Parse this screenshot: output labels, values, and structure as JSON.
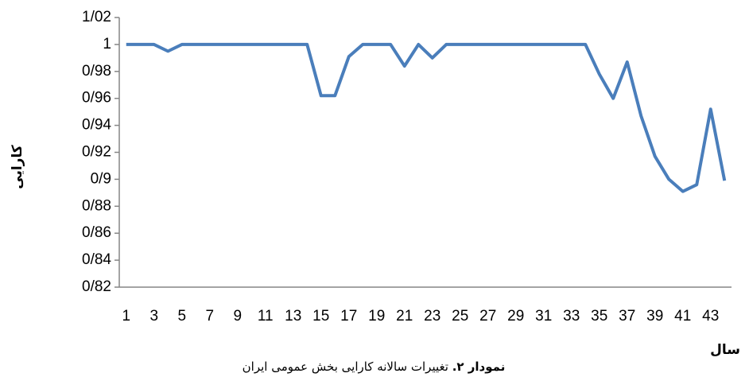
{
  "chart_data": {
    "type": "line",
    "caption_label": "نمودار ۲.",
    "caption_text": "تغییرات سالانه کارایی بخش عمومی ایران",
    "x_label": "سال",
    "y_label": "کارایی",
    "categories": [
      "1",
      null,
      "3",
      null,
      "5",
      null,
      "7",
      null,
      "9",
      null,
      "11",
      null,
      "13",
      null,
      "15",
      null,
      "17",
      null,
      "19",
      null,
      "21",
      null,
      "23",
      null,
      "25",
      null,
      "27",
      null,
      "29",
      null,
      "31",
      null,
      "33",
      null,
      "35",
      null,
      "37",
      null,
      "39",
      null,
      "41",
      null,
      "43",
      null
    ],
    "series": [
      {
        "name": null,
        "color": "#4a7ebb",
        "values": [
          1,
          1,
          1,
          0.995,
          1,
          1,
          1,
          1,
          1,
          1,
          1,
          1,
          1,
          1,
          0.962,
          0.962,
          0.991,
          1,
          1,
          1,
          0.984,
          1,
          0.99,
          1,
          1,
          1,
          1,
          1,
          1,
          1,
          1,
          1,
          1,
          1,
          0.978,
          0.96,
          0.987,
          0.947,
          0.917,
          0.9,
          0.891,
          0.896,
          0.952,
          0.899
        ]
      }
    ],
    "ylim": [
      0.82,
      1.02
    ],
    "yticks": [
      {
        "value": 0.82,
        "label": "0/82"
      },
      {
        "value": 0.84,
        "label": "0/84"
      },
      {
        "value": 0.86,
        "label": "0/86"
      },
      {
        "value": 0.88,
        "label": "0/88"
      },
      {
        "value": 0.9,
        "label": "0/9"
      },
      {
        "value": 0.92,
        "label": "0/92"
      },
      {
        "value": 0.94,
        "label": "0/94"
      },
      {
        "value": 0.96,
        "label": "0/96"
      },
      {
        "value": 0.98,
        "label": "0/98"
      },
      1,
      {
        "value": 1.02,
        "label": "1/02"
      }
    ],
    "grid": false
  }
}
